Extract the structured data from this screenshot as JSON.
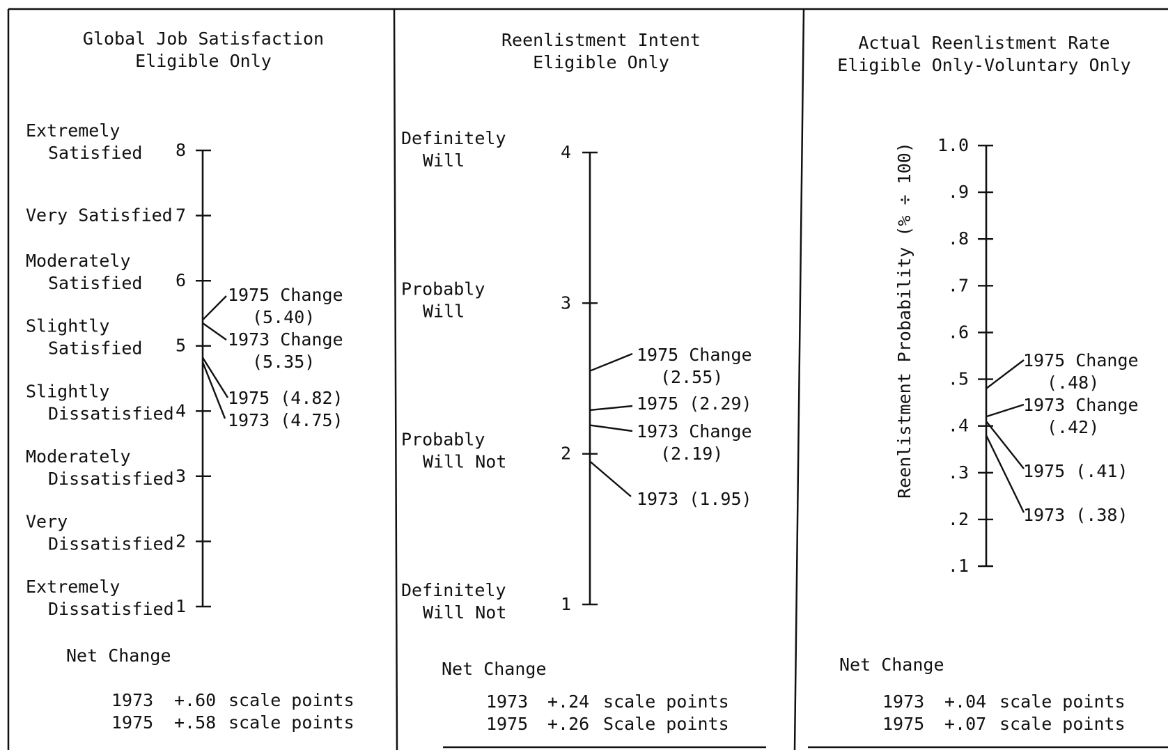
{
  "chart_data": [
    {
      "type": "scale",
      "title": [
        "Global Job Satisfaction",
        "Eligible Only"
      ],
      "ylim": [
        1,
        8
      ],
      "ticks": [
        {
          "value": 1,
          "num": "1",
          "label": [
            "Extremely",
            "Dissatisfied"
          ]
        },
        {
          "value": 2,
          "num": "2",
          "label": [
            "Very",
            "Dissatisfied"
          ]
        },
        {
          "value": 3,
          "num": "3",
          "label": [
            "Moderately",
            "Dissatisfied"
          ]
        },
        {
          "value": 4,
          "num": "4",
          "label": [
            "Slightly",
            "Dissatisfied"
          ]
        },
        {
          "value": 5,
          "num": "5",
          "label": [
            "Slightly",
            "Satisfied"
          ]
        },
        {
          "value": 6,
          "num": "6",
          "label": [
            "Moderately",
            "Satisfied"
          ]
        },
        {
          "value": 7,
          "num": "7",
          "label": [
            "Very Satisfied"
          ]
        },
        {
          "value": 8,
          "num": "8",
          "label": [
            "Extremely",
            "Satisfied"
          ]
        }
      ],
      "points": [
        {
          "value": 5.4,
          "label": [
            "1975 Change",
            "(5.40)"
          ]
        },
        {
          "value": 5.35,
          "label": [
            "1973 Change",
            "(5.35)"
          ]
        },
        {
          "value": 4.82,
          "label": [
            "1975 (4.82)"
          ]
        },
        {
          "value": 4.75,
          "label": [
            "1973 (4.75)"
          ]
        }
      ],
      "net_change": {
        "heading": "Net Change",
        "rows": [
          {
            "year": "1973",
            "value": "+.60",
            "unit": "scale points"
          },
          {
            "year": "1975",
            "value": "+.58",
            "unit": "scale points"
          }
        ]
      }
    },
    {
      "type": "scale",
      "title": [
        "Reenlistment Intent",
        "Eligible Only"
      ],
      "ylim": [
        1,
        4
      ],
      "ticks": [
        {
          "value": 1,
          "num": "1",
          "label": [
            "Definitely",
            "Will Not"
          ]
        },
        {
          "value": 2,
          "num": "2",
          "label": [
            "Probably",
            "Will Not"
          ]
        },
        {
          "value": 3,
          "num": "3",
          "label": [
            "Probably",
            "Will"
          ]
        },
        {
          "value": 4,
          "num": "4",
          "label": [
            "Definitely",
            "Will"
          ]
        }
      ],
      "points": [
        {
          "value": 2.55,
          "label": [
            "1975 Change",
            "(2.55)"
          ]
        },
        {
          "value": 2.29,
          "label": [
            "1975 (2.29)"
          ]
        },
        {
          "value": 2.19,
          "label": [
            "1973 Change",
            "(2.19)"
          ]
        },
        {
          "value": 1.95,
          "label": [
            "1973 (1.95)"
          ]
        }
      ],
      "net_change": {
        "heading": "Net Change",
        "rows": [
          {
            "year": "1973",
            "value": "+.24",
            "unit": "scale points"
          },
          {
            "year": "1975",
            "value": "+.26",
            "unit": "Scale points"
          }
        ]
      }
    },
    {
      "type": "scale",
      "title": [
        "Actual Reenlistment Rate",
        "Eligible Only-Voluntary Only"
      ],
      "ylabel": "Reenlistment Probability (% ÷ 100)",
      "ylim": [
        0.1,
        1.0
      ],
      "ticks": [
        {
          "value": 0.1,
          "num": ".1"
        },
        {
          "value": 0.2,
          "num": ".2"
        },
        {
          "value": 0.3,
          "num": ".3"
        },
        {
          "value": 0.4,
          "num": ".4"
        },
        {
          "value": 0.5,
          "num": ".5"
        },
        {
          "value": 0.6,
          "num": ".6"
        },
        {
          "value": 0.7,
          "num": ".7"
        },
        {
          "value": 0.8,
          "num": ".8"
        },
        {
          "value": 0.9,
          "num": ".9"
        },
        {
          "value": 1.0,
          "num": "1.0"
        }
      ],
      "points": [
        {
          "value": 0.48,
          "label": [
            "1975 Change",
            "(.48)"
          ]
        },
        {
          "value": 0.42,
          "label": [
            "1973 Change",
            "(.42)"
          ]
        },
        {
          "value": 0.41,
          "label": [
            "1975 (.41)"
          ]
        },
        {
          "value": 0.38,
          "label": [
            "1973 (.38)"
          ]
        }
      ],
      "net_change": {
        "heading": "Net Change",
        "rows": [
          {
            "year": "1973",
            "value": "+.04",
            "unit": "scale points"
          },
          {
            "year": "1975",
            "value": "+.07",
            "unit": "scale points"
          }
        ]
      }
    }
  ]
}
